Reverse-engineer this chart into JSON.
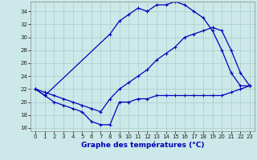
{
  "xlabel": "Graphe des températures (°C)",
  "bg_color": "#cce8e8",
  "line_color": "#0000bb",
  "grid_color": "#aacccc",
  "xlim": [
    -0.5,
    23.5
  ],
  "ylim": [
    15.5,
    35.5
  ],
  "yticks": [
    16,
    18,
    20,
    22,
    24,
    26,
    28,
    30,
    32,
    34
  ],
  "xticks": [
    0,
    1,
    2,
    3,
    4,
    5,
    6,
    7,
    8,
    9,
    10,
    11,
    12,
    13,
    14,
    15,
    16,
    17,
    18,
    19,
    20,
    21,
    22,
    23
  ],
  "line1_x": [
    0,
    1,
    2,
    3,
    4,
    5,
    6,
    7,
    8,
    9,
    10,
    11,
    12,
    13,
    14,
    15,
    16,
    17,
    18,
    19,
    20,
    21,
    22,
    23
  ],
  "line1_y": [
    22,
    21,
    20,
    19.5,
    19,
    18.5,
    17,
    16.5,
    16.5,
    20,
    20,
    20.5,
    20.5,
    21,
    21,
    21,
    21,
    21,
    21,
    21,
    21,
    21.5,
    22,
    22.5
  ],
  "line2_x": [
    0,
    1,
    8,
    9,
    10,
    11,
    12,
    13,
    14,
    15,
    16,
    17,
    18,
    19,
    20,
    21,
    22,
    23
  ],
  "line2_y": [
    22,
    21,
    30.5,
    32.5,
    33.5,
    34.5,
    34,
    35,
    35,
    35.5,
    35,
    34,
    33,
    31,
    28,
    24.5,
    22.5,
    22.5
  ],
  "line3_x": [
    0,
    1,
    2,
    3,
    4,
    5,
    6,
    7,
    8,
    9,
    10,
    11,
    12,
    13,
    14,
    15,
    16,
    17,
    18,
    19,
    20,
    21,
    22,
    23
  ],
  "line3_y": [
    22,
    21.5,
    21,
    20.5,
    20,
    19.5,
    19,
    18.5,
    20.5,
    22,
    23,
    24,
    25,
    26.5,
    27.5,
    28.5,
    30,
    30.5,
    31,
    31.5,
    31,
    28,
    24.5,
    22.5
  ]
}
